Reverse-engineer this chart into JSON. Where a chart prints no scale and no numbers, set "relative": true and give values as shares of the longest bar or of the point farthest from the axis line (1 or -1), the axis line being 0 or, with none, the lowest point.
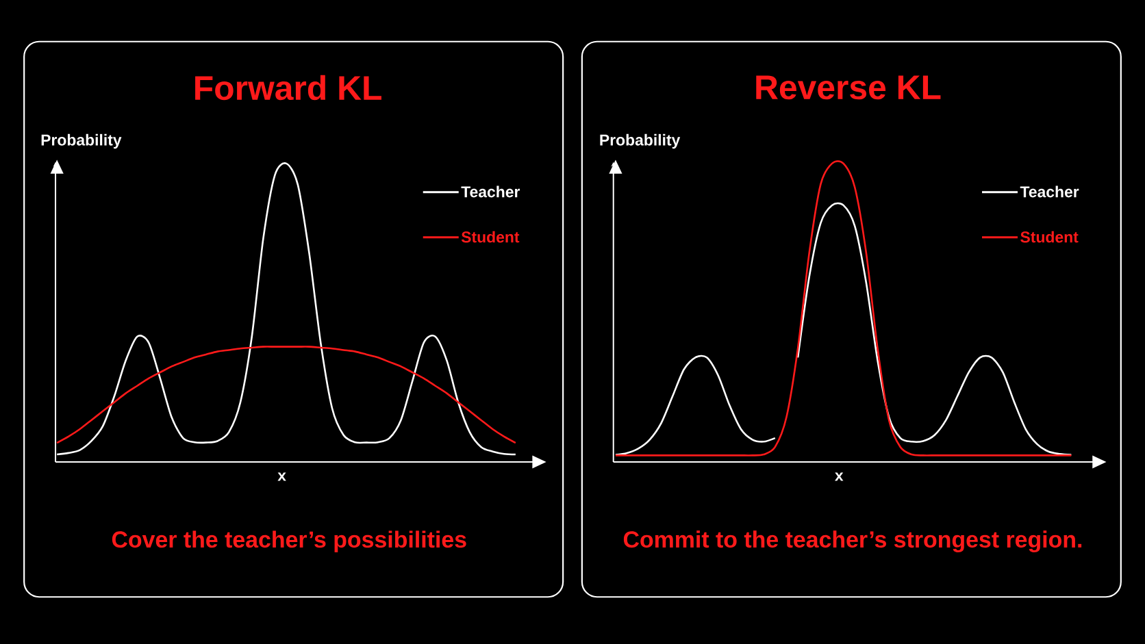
{
  "chart_data": [
    {
      "type": "line",
      "title": "Forward KL",
      "xlabel": "x",
      "ylabel": "Probability",
      "relative": true,
      "legend": "top right",
      "categories": [
        null,
        null,
        null,
        null,
        null,
        null,
        null,
        null,
        null,
        null,
        null,
        null,
        null,
        null,
        null,
        null,
        null,
        null,
        null,
        null,
        null,
        null,
        null,
        null,
        null,
        null,
        null,
        null,
        null,
        null,
        null,
        null,
        null,
        null,
        null,
        null,
        null,
        null,
        null,
        null,
        null
      ],
      "series": [
        {
          "name": "Teacher",
          "color": "#ffffff",
          "values": [
            0.025,
            0.03,
            0.04,
            0.07,
            0.12,
            0.22,
            0.34,
            0.42,
            0.4,
            0.28,
            0.15,
            0.08,
            0.066,
            0.065,
            0.07,
            0.1,
            0.2,
            0.42,
            0.75,
            0.96,
            1.0,
            0.93,
            0.7,
            0.4,
            0.18,
            0.09,
            0.066,
            0.065,
            0.066,
            0.08,
            0.14,
            0.27,
            0.4,
            0.42,
            0.34,
            0.2,
            0.1,
            0.05,
            0.035,
            0.027,
            0.025
          ]
        },
        {
          "name": "Student",
          "color": "#ff1a1a",
          "values": [
            0.064,
            0.085,
            0.11,
            0.14,
            0.17,
            0.2,
            0.23,
            0.255,
            0.28,
            0.3,
            0.32,
            0.335,
            0.35,
            0.36,
            0.37,
            0.375,
            0.38,
            0.383,
            0.386,
            0.386,
            0.386,
            0.386,
            0.386,
            0.383,
            0.38,
            0.375,
            0.37,
            0.36,
            0.35,
            0.335,
            0.32,
            0.3,
            0.28,
            0.255,
            0.23,
            0.2,
            0.17,
            0.14,
            0.11,
            0.085,
            0.064
          ]
        }
      ],
      "annotations": [
        "Cover the teacher’s possibilities"
      ]
    },
    {
      "type": "line",
      "title": "Reverse KL",
      "xlabel": "x",
      "ylabel": "Probability",
      "relative": true,
      "legend": "top right",
      "categories": [
        null,
        null,
        null,
        null,
        null,
        null,
        null,
        null,
        null,
        null,
        null,
        null,
        null,
        null,
        null,
        null,
        null,
        null,
        null,
        null,
        null,
        null,
        null,
        null,
        null,
        null,
        null,
        null,
        null,
        null,
        null,
        null,
        null,
        null,
        null,
        null,
        null,
        null,
        null,
        null,
        null
      ],
      "series": [
        {
          "name": "Teacher",
          "color": "#ffffff",
          "values": [
            0.024,
            0.03,
            0.045,
            0.075,
            0.13,
            0.22,
            0.31,
            0.35,
            0.35,
            0.29,
            0.19,
            0.11,
            0.075,
            0.068,
            0.08,
            null,
            0.35,
            0.62,
            0.8,
            0.86,
            0.86,
            0.79,
            0.6,
            0.34,
            0.15,
            0.08,
            0.068,
            0.07,
            0.09,
            0.14,
            0.22,
            0.3,
            0.35,
            0.35,
            0.3,
            0.2,
            0.11,
            0.06,
            0.035,
            0.027,
            0.024
          ]
        },
        {
          "name": "Student",
          "color": "#ff1a1a",
          "values": [
            0.022,
            0.022,
            0.022,
            0.022,
            0.022,
            0.022,
            0.022,
            0.022,
            0.022,
            0.022,
            0.022,
            0.022,
            0.022,
            0.025,
            0.05,
            0.15,
            0.38,
            0.7,
            0.93,
            1.0,
            1.0,
            0.92,
            0.7,
            0.38,
            0.14,
            0.05,
            0.025,
            0.022,
            0.022,
            0.022,
            0.022,
            0.022,
            0.022,
            0.022,
            0.022,
            0.022,
            0.022,
            0.022,
            0.022,
            0.022,
            0.022
          ]
        }
      ],
      "annotations": [
        "Commit to the teacher’s strongest region."
      ]
    }
  ]
}
